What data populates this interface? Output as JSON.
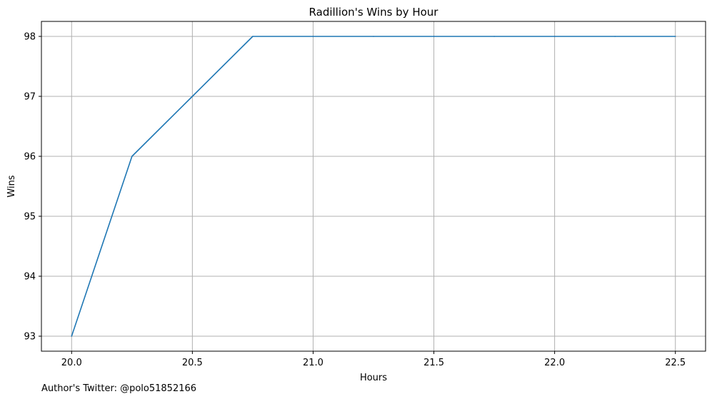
{
  "chart_data": {
    "type": "line",
    "title": "Radillion's Wins by Hour",
    "xlabel": "Hours",
    "ylabel": "Wins",
    "x": [
      20.0,
      20.25,
      20.5,
      20.75,
      21.0,
      21.25,
      21.5,
      21.75,
      22.0,
      22.25,
      22.5
    ],
    "series": [
      {
        "values": [
          93,
          96,
          97,
          98,
          98,
          98,
          98,
          98,
          98,
          98,
          98
        ],
        "color": "#1f77b4"
      }
    ],
    "xlim": [
      19.875,
      22.625
    ],
    "ylim": [
      92.75,
      98.25
    ],
    "xticks": [
      20.0,
      20.5,
      21.0,
      21.5,
      22.0,
      22.5
    ],
    "xtick_labels": [
      "20.0",
      "20.5",
      "21.0",
      "21.5",
      "22.0",
      "22.5"
    ],
    "yticks": [
      93,
      94,
      95,
      96,
      97,
      98
    ],
    "ytick_labels": [
      "93",
      "94",
      "95",
      "96",
      "97",
      "98"
    ],
    "grid": true
  },
  "footer": {
    "credit": "Author's Twitter: @polo51852166"
  }
}
